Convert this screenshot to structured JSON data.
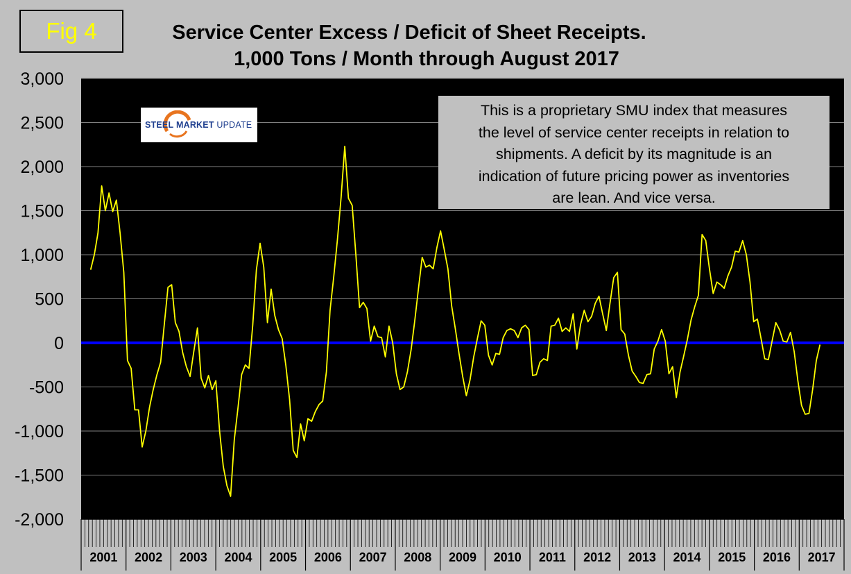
{
  "figure": {
    "badge": "Fig 4",
    "title_line1": "Service Center Excess / Deficit of Sheet Receipts.",
    "title_line2": "1,000 Tons / Month through August 2017"
  },
  "note": {
    "lines": [
      "This is a proprietary SMU index that measures",
      "the level of service center receipts in relation to",
      "shipments. A deficit by its magnitude is an",
      "indication of future pricing power as inventories",
      "are lean. And vice versa."
    ]
  },
  "logo": {
    "word1": "STEEL",
    "word2": "MARKET",
    "word3": "UPDATE"
  },
  "colors": {
    "background": "#c0c0c0",
    "plot_background": "#000000",
    "line": "#ffff00",
    "zero_line": "#0000ff",
    "badge_text": "#ffff00"
  },
  "chart_data": {
    "type": "line",
    "title": "Service Center Excess / Deficit of Sheet Receipts. 1,000 Tons / Month through August 2017",
    "xlabel": "",
    "ylabel": "",
    "ylim": [
      -2000,
      3000
    ],
    "yticks": [
      -2000,
      -1500,
      -1000,
      -500,
      0,
      500,
      1000,
      1500,
      2000,
      2500,
      3000
    ],
    "ytick_labels": [
      "-2,000",
      "-1,500",
      "-1,000",
      "-500",
      "0",
      "500",
      "1,000",
      "1,500",
      "2,000",
      "2,500",
      "3,000"
    ],
    "year_labels": [
      "2001",
      "2002",
      "2003",
      "2004",
      "2005",
      "2006",
      "2007",
      "2008",
      "2009",
      "2010",
      "2011",
      "2012",
      "2013",
      "2014",
      "2015",
      "2016",
      "2017"
    ],
    "start": "2001-01",
    "end": "2017-08",
    "grid": true,
    "reference_line": 0,
    "series": [
      {
        "name": "Excess / Deficit",
        "values": [
          830,
          1000,
          1250,
          1780,
          1500,
          1700,
          1490,
          1620,
          1250,
          800,
          -200,
          -290,
          -760,
          -760,
          -1180,
          -1000,
          -730,
          -530,
          -360,
          -220,
          210,
          630,
          660,
          230,
          130,
          -110,
          -270,
          -380,
          -100,
          170,
          -400,
          -510,
          -370,
          -530,
          -430,
          -1000,
          -1400,
          -1620,
          -1740,
          -1100,
          -740,
          -360,
          -250,
          -290,
          200,
          830,
          1130,
          860,
          230,
          610,
          310,
          150,
          50,
          -260,
          -640,
          -1220,
          -1300,
          -920,
          -1110,
          -860,
          -890,
          -780,
          -700,
          -660,
          -330,
          370,
          750,
          1170,
          1650,
          2230,
          1640,
          1560,
          1000,
          400,
          460,
          390,
          20,
          190,
          70,
          60,
          -160,
          190,
          0,
          -350,
          -530,
          -500,
          -330,
          -80,
          250,
          620,
          970,
          860,
          880,
          840,
          1080,
          1270,
          1060,
          840,
          420,
          160,
          -120,
          -380,
          -600,
          -420,
          -160,
          50,
          250,
          200,
          -140,
          -250,
          -120,
          -130,
          60,
          140,
          160,
          140,
          60,
          170,
          200,
          150,
          -370,
          -360,
          -220,
          -180,
          -200,
          190,
          200,
          280,
          130,
          170,
          130,
          330,
          -70,
          210,
          370,
          240,
          300,
          450,
          530,
          330,
          140,
          450,
          740,
          800,
          150,
          100,
          -140,
          -320,
          -380,
          -450,
          -460,
          -360,
          -350,
          -70,
          20,
          150,
          20,
          -350,
          -270,
          -620,
          -330,
          -150,
          40,
          260,
          410,
          540,
          1230,
          1160,
          840,
          560,
          690,
          660,
          620,
          760,
          860,
          1040,
          1030,
          1160,
          1000,
          690,
          240,
          270,
          50,
          -180,
          -190,
          20,
          230,
          150,
          20,
          10,
          120,
          -100,
          -430,
          -710,
          -810,
          -800,
          -530,
          -200,
          -20
        ]
      }
    ]
  }
}
